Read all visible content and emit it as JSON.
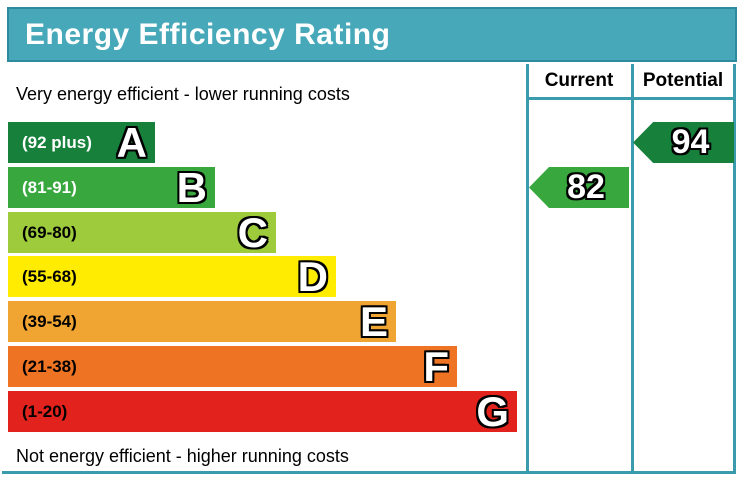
{
  "title": "Energy Efficiency Rating",
  "columns": {
    "current": "Current",
    "potential": "Potential"
  },
  "annotations": {
    "top": "Very energy efficient - lower running costs",
    "bottom": "Not energy efficient - higher running costs"
  },
  "bands": [
    {
      "letter": "A",
      "range": "(92 plus)",
      "color": "#17813c",
      "text_color": "#ffffff"
    },
    {
      "letter": "B",
      "range": "(81-91)",
      "color": "#38a83e",
      "text_color": "#ffffff"
    },
    {
      "letter": "C",
      "range": "(69-80)",
      "color": "#9dcb3c",
      "text_color": "#000000"
    },
    {
      "letter": "D",
      "range": "(55-68)",
      "color": "#ffec00",
      "text_color": "#000000"
    },
    {
      "letter": "E",
      "range": "(39-54)",
      "color": "#f0a431",
      "text_color": "#000000"
    },
    {
      "letter": "F",
      "range": "(21-38)",
      "color": "#ee7424",
      "text_color": "#000000"
    },
    {
      "letter": "G",
      "range": "(1-20)",
      "color": "#e2231d",
      "text_color": "#000000"
    }
  ],
  "current": {
    "value": "82",
    "row_index": 1,
    "color": "#38a83e"
  },
  "potential": {
    "value": "94",
    "row_index": 0,
    "color": "#17813c"
  },
  "theme": {
    "banner_fill": "#47a8b9",
    "banner_border": "#2e8b9e",
    "grid_line": "#3a9bad"
  },
  "chart_data": {
    "type": "bar",
    "title": "Energy Efficiency Rating",
    "categories": [
      "A",
      "B",
      "C",
      "D",
      "E",
      "F",
      "G"
    ],
    "band_ranges": [
      "92 plus",
      "81-91",
      "69-80",
      "55-68",
      "39-54",
      "21-38",
      "1-20"
    ],
    "band_colors": [
      "#17813c",
      "#38a83e",
      "#9dcb3c",
      "#ffec00",
      "#f0a431",
      "#ee7424",
      "#e2231d"
    ],
    "bar_relative_widths": [
      147,
      207,
      268,
      329,
      389,
      449,
      509
    ],
    "series": [
      {
        "name": "Current",
        "value": 82,
        "band": "B"
      },
      {
        "name": "Potential",
        "value": 94,
        "band": "A"
      }
    ],
    "annotations": [
      "Very energy efficient - lower running costs",
      "Not energy efficient - higher running costs"
    ],
    "legend_position": "none",
    "grid": false
  }
}
